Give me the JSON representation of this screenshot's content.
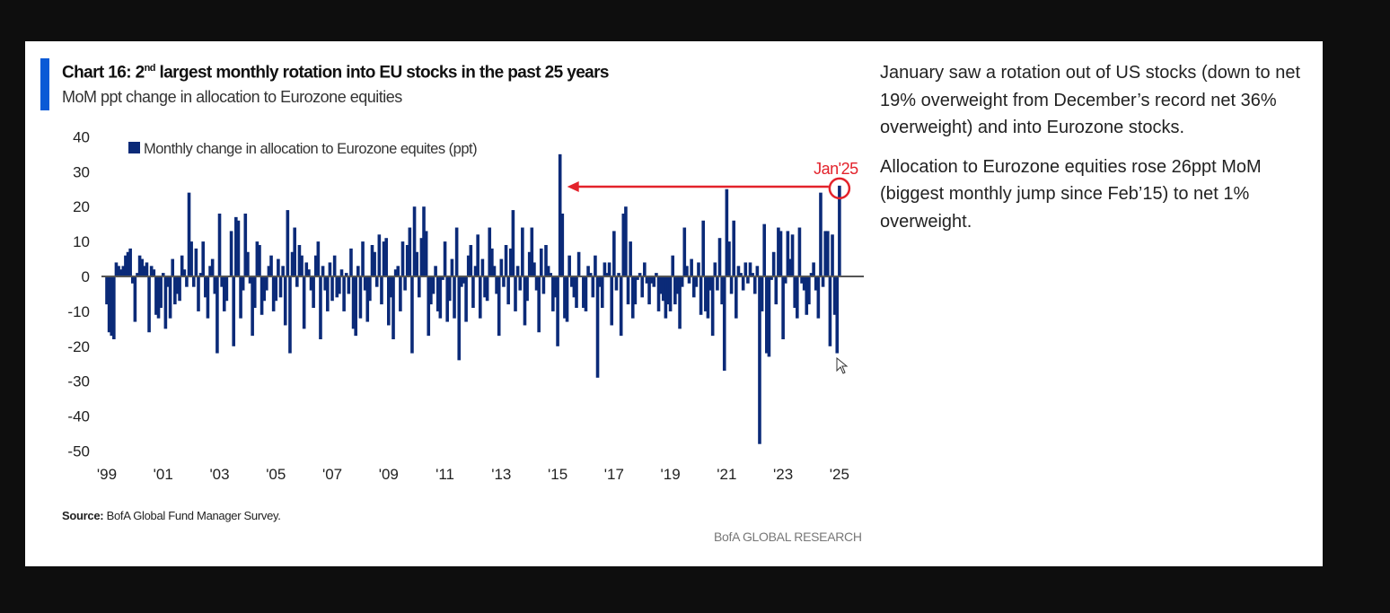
{
  "header": {
    "title_prefix": "Chart 16: 2",
    "title_sup": "nd",
    "title_suffix": " largest monthly rotation into EU stocks in the past 25 years",
    "subtitle": "MoM ppt change in allocation to Eurozone equities"
  },
  "footer": {
    "source_label": "Source:",
    "source_text": " BofA Global Fund Manager Survey.",
    "brand": "BofA GLOBAL RESEARCH"
  },
  "commentary": [
    "January saw a rotation out of US stocks (down to net 19% overweight from December’s record net 36% overweight) and into Eurozone stocks.",
    "Allocation to Eurozone equities rose 26ppt MoM (biggest monthly jump since Feb’15) to net 1% overweight."
  ],
  "colors": {
    "bar": "#0b2a78",
    "accent": "#0a5ad6",
    "annotation": "#e3222b"
  },
  "chart_data": {
    "type": "bar",
    "title": "Chart 16: 2nd largest monthly rotation into EU stocks in the past 25 years",
    "subtitle": "MoM ppt change in allocation to Eurozone equities",
    "legend": {
      "label": "Monthly change in allocation to Eurozone equites (ppt)",
      "placement": "top-left"
    },
    "x_start": "1999-01",
    "frequency": "monthly",
    "xticks": [
      "'99",
      "'01",
      "'03",
      "'05",
      "'07",
      "'09",
      "'11",
      "'13",
      "'15",
      "'17",
      "'19",
      "'21",
      "'23",
      "'25"
    ],
    "yticks": [
      40,
      30,
      20,
      10,
      0,
      -10,
      -20,
      -30,
      -40,
      -50
    ],
    "ylim": [
      -50,
      40
    ],
    "annotation": {
      "label": "Jan'25",
      "target_index": 312,
      "arrow_to_index": 193
    },
    "values": [
      -8,
      -16,
      -17,
      -18,
      4,
      3,
      2,
      3,
      6,
      7,
      8,
      -2,
      -13,
      1,
      6,
      5,
      3,
      4,
      -16,
      3,
      2,
      -11,
      -12,
      -9,
      1,
      -15,
      -3,
      -12,
      5,
      -8,
      -5,
      -7,
      6,
      2,
      -3,
      24,
      10,
      -3,
      8,
      -10,
      1,
      10,
      -6,
      -12,
      3,
      5,
      -5,
      -22,
      18,
      -3,
      -10,
      -7,
      0,
      13,
      -20,
      17,
      16,
      -12,
      -4,
      18,
      7,
      -2,
      -17,
      -9,
      10,
      9,
      -11,
      -7,
      -4,
      3,
      6,
      -10,
      -7,
      5,
      -6,
      3,
      -14,
      19,
      -22,
      7,
      14,
      -3,
      9,
      6,
      -15,
      4,
      2,
      -4,
      -9,
      6,
      10,
      -18,
      3,
      -4,
      -10,
      4,
      -7,
      6,
      -6,
      -5,
      2,
      -10,
      1,
      -5,
      8,
      -15,
      -17,
      3,
      -12,
      10,
      -4,
      -13,
      -7,
      9,
      7,
      -3,
      12,
      -8,
      10,
      11,
      -14,
      -6,
      -18,
      2,
      3,
      -10,
      10,
      -4,
      9,
      14,
      -22,
      20,
      7,
      -6,
      11,
      20,
      13,
      -17,
      -8,
      -5,
      3,
      -10,
      -12,
      -1,
      10,
      -13,
      -7,
      5,
      -12,
      14,
      -24,
      -3,
      -2,
      -13,
      6,
      9,
      -9,
      3,
      12,
      -12,
      5,
      -6,
      -7,
      14,
      8,
      3,
      -5,
      -17,
      5,
      -3,
      9,
      -8,
      8,
      19,
      -10,
      3,
      -4,
      14,
      -14,
      -7,
      7,
      14,
      4,
      -4,
      -16,
      8,
      -5,
      9,
      3,
      1,
      -10,
      -6,
      -20,
      35,
      18,
      -12,
      -13,
      6,
      -3,
      -6,
      -9,
      7,
      0,
      -9,
      -10,
      3,
      1,
      -6,
      6,
      -29,
      -3,
      -9,
      4,
      1,
      4,
      -14,
      13,
      -4,
      1,
      -17,
      18,
      20,
      -8,
      10,
      -12,
      -8,
      -1,
      1,
      -6,
      4,
      -2,
      -8,
      -2,
      -3,
      1,
      -10,
      -5,
      -7,
      -12,
      -8,
      -10,
      6,
      -8,
      -5,
      -15,
      -3,
      14,
      3,
      -2,
      5,
      -6,
      -3,
      4,
      -11,
      16,
      -10,
      -12,
      -4,
      -17,
      4,
      -4,
      11,
      -8,
      -27,
      25,
      10,
      -5,
      16,
      -12,
      3,
      1,
      -4,
      4,
      -2,
      4,
      1,
      -5,
      3,
      -48,
      -10,
      15,
      -22,
      -23,
      -1,
      7,
      -8,
      14,
      13,
      -18,
      -2,
      13,
      5,
      12,
      -9,
      -12,
      14,
      -2,
      -4,
      -11,
      -8,
      1,
      4,
      -4,
      -12,
      24,
      -3,
      13,
      13,
      -20,
      12,
      -11,
      -22,
      26
    ]
  }
}
